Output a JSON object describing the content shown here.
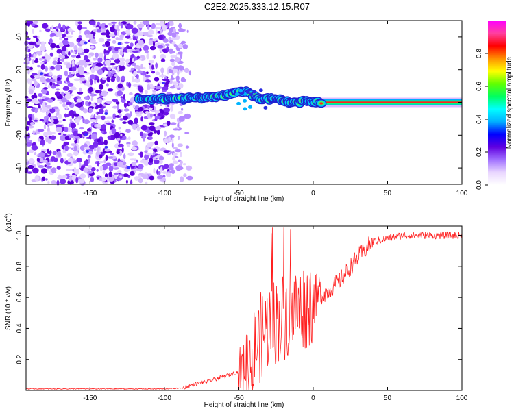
{
  "title": "C2E2.2025.333.12.15.R07",
  "chart_data": [
    {
      "type": "heatmap",
      "name": "spectrogram",
      "xlabel": "Height of straight line (km)",
      "ylabel": "Frequency (Hz)",
      "xlim": [
        -193,
        100
      ],
      "ylim": [
        -50,
        50
      ],
      "xticks": [
        -150,
        -100,
        -50,
        0,
        50,
        100
      ],
      "yticks": [
        -40,
        -20,
        0,
        20,
        40
      ],
      "colorbar": {
        "label": "Normalized spectral amplitude",
        "range": [
          0,
          1
        ],
        "ticks": [
          "0.0",
          "0.2",
          "0.4",
          "0.6",
          "0.8"
        ],
        "colors": [
          "#ffffff",
          "#e9d6ff",
          "#a070ff",
          "#6000e0",
          "#0000ff",
          "#00b0ff",
          "#00ffff",
          "#00ff60",
          "#60ff00",
          "#ffff00",
          "#ff9000",
          "#ff0000",
          "#ff40a0",
          "#ff00ff"
        ]
      },
      "noise_region_km": [
        -193,
        -88
      ],
      "signal_ridge": {
        "x": [
          -117,
          -100,
          -90,
          -80,
          -70,
          -60,
          -52,
          -47,
          -42,
          -36,
          -30,
          -25,
          -20,
          -15,
          -10,
          -5,
          0,
          5,
          20,
          50,
          100
        ],
        "freq": [
          2,
          2,
          2,
          3,
          3,
          4,
          6,
          7,
          5,
          2,
          2,
          2,
          1,
          0,
          0,
          1,
          0,
          0,
          0,
          0,
          0
        ]
      }
    },
    {
      "type": "line",
      "name": "snr",
      "xlabel": "Height of straight line (km)",
      "ylabel": "SNR (10 * v/v)",
      "scale_label": "(x10",
      "scale_exp": "4",
      "xlim": [
        -193,
        100
      ],
      "ylim": [
        0,
        1.06
      ],
      "xticks": [
        -150,
        -100,
        -50,
        0,
        50,
        100
      ],
      "yticks": [
        0.2,
        0.4,
        0.6,
        0.8,
        1.0
      ],
      "color": "#ff2020",
      "envelope": {
        "x": [
          -193,
          -100,
          -88,
          -80,
          -70,
          -60,
          -50,
          -45,
          -40,
          -35,
          -30,
          -25,
          -20,
          -10,
          0,
          10,
          20,
          30,
          40,
          60,
          100
        ],
        "y": [
          0.01,
          0.01,
          0.015,
          0.04,
          0.06,
          0.09,
          0.12,
          0.16,
          0.25,
          0.35,
          0.42,
          0.45,
          0.48,
          0.52,
          0.58,
          0.64,
          0.73,
          0.86,
          0.96,
          1.0,
          1.0
        ]
      }
    }
  ]
}
